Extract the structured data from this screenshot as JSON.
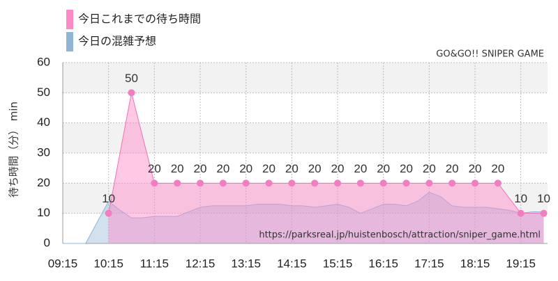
{
  "chart_data": {
    "type": "area",
    "watermark": "GO&GO!! SNIPER GAME",
    "source": "https://parksreal.jp/huistenbosch/attraction/sniper_game.html",
    "y_label": "待ち時間（分） min",
    "xlim": [
      "09:15",
      "19:50"
    ],
    "xticks": [
      "09:15",
      "10:15",
      "11:15",
      "12:15",
      "13:15",
      "14:15",
      "15:15",
      "16:15",
      "17:15",
      "18:15",
      "19:15"
    ],
    "ylim": [
      0,
      60
    ],
    "yticks": [
      0,
      10,
      20,
      30,
      40,
      50,
      60
    ],
    "grid": true,
    "series": [
      {
        "name": "今日の混雑予想",
        "color": "#8fb4d4",
        "x": [
          "09:15",
          "09:30",
          "09:45",
          "10:00",
          "10:15",
          "10:30",
          "10:45",
          "11:00",
          "11:15",
          "11:30",
          "11:45",
          "12:00",
          "12:15",
          "12:30",
          "12:45",
          "13:00",
          "13:15",
          "13:30",
          "13:45",
          "14:00",
          "14:15",
          "14:30",
          "14:45",
          "15:00",
          "15:15",
          "15:30",
          "15:45",
          "16:00",
          "16:15",
          "16:30",
          "16:45",
          "17:00",
          "17:15",
          "17:30",
          "17:45",
          "18:00",
          "18:15",
          "18:30",
          "18:45",
          "19:00",
          "19:15",
          "19:30",
          "19:45"
        ],
        "values": [
          0,
          0,
          0,
          7,
          14,
          11,
          8.5,
          8.5,
          9,
          9,
          9,
          10.5,
          12,
          12.5,
          12.5,
          12.5,
          12.5,
          13,
          13,
          13,
          12.5,
          12.5,
          12,
          12.5,
          13,
          12,
          10,
          11.5,
          13,
          13,
          12.5,
          14,
          17,
          15.5,
          12.5,
          12,
          12,
          12,
          11.5,
          11,
          10,
          10.5,
          10.5
        ]
      },
      {
        "name": "今日これまでの待ち時間",
        "color": "#ff88c8",
        "x": [
          "10:15",
          "10:45",
          "11:15",
          "11:45",
          "12:15",
          "12:45",
          "13:15",
          "13:45",
          "14:15",
          "14:45",
          "15:15",
          "15:45",
          "16:15",
          "16:45",
          "17:15",
          "17:45",
          "18:15",
          "18:45",
          "19:15",
          "19:45"
        ],
        "values": [
          10,
          50,
          20,
          20,
          20,
          20,
          20,
          20,
          20,
          20,
          20,
          20,
          20,
          20,
          20,
          20,
          20,
          20,
          10,
          10
        ]
      }
    ]
  }
}
